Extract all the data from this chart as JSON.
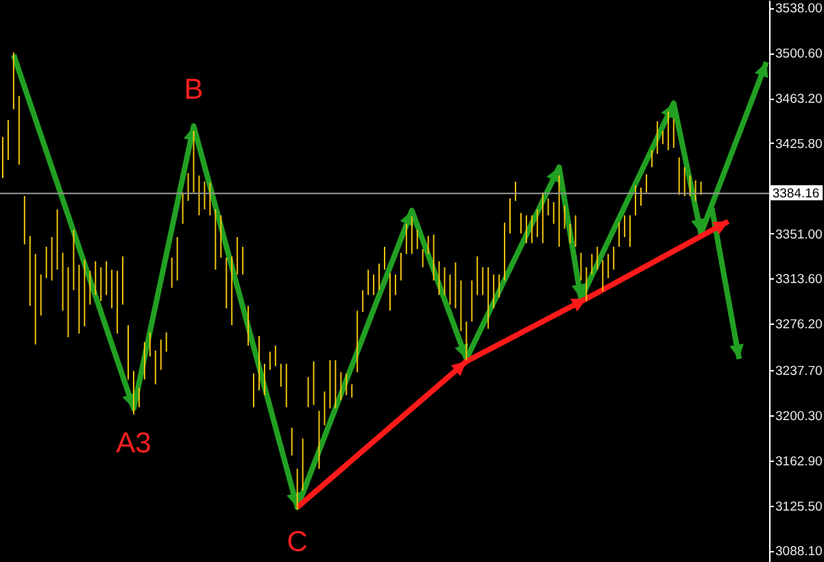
{
  "chart_data": {
    "type": "bar",
    "categories": [
      null,
      null,
      null,
      null,
      null,
      null,
      null,
      null,
      null,
      null,
      null,
      null,
      null,
      null,
      null,
      null,
      null,
      null,
      null,
      null,
      null,
      null,
      null,
      null,
      null,
      null,
      null,
      null,
      null,
      null,
      null,
      null,
      null,
      null,
      null,
      null,
      null,
      null,
      null,
      null,
      null,
      null,
      null,
      null,
      null,
      null,
      null,
      null,
      null,
      null,
      null,
      null,
      null,
      null,
      null,
      null,
      null,
      null,
      null,
      null,
      null,
      null,
      null,
      null,
      null,
      null,
      null,
      null,
      null,
      null,
      null,
      null,
      null,
      null,
      null,
      null,
      null,
      null,
      null,
      null,
      null,
      null,
      null,
      null,
      null,
      null,
      null,
      null,
      null,
      null,
      null,
      null,
      null,
      null,
      null,
      null,
      null,
      null,
      null,
      null,
      null,
      null,
      null,
      null,
      null,
      null,
      null,
      null,
      null,
      null,
      null,
      null,
      null,
      null,
      null,
      null,
      null,
      null,
      null,
      null,
      null,
      null,
      null,
      null,
      null,
      null,
      null,
      null,
      null,
      null,
      null,
      null,
      null,
      null,
      null,
      null,
      null,
      null,
      null,
      null,
      null
    ],
    "series": [
      {
        "color": "#f2c40f",
        "base": [
          3397,
          3412,
          3454,
          3408,
          3342,
          3291,
          3259,
          3283,
          3314,
          3312,
          3321,
          3287,
          3265,
          3304,
          3268,
          3274,
          3292,
          3300,
          3295,
          3300,
          3289,
          3268,
          3292,
          3230,
          3201,
          3207,
          3230,
          3249,
          3226,
          3238,
          3253,
          3306,
          3312,
          3359,
          3378,
          3385,
          3366,
          3371,
          3366,
          3321,
          3331,
          3289,
          3275,
          3317,
          3317,
          3258,
          3207,
          3221,
          3217,
          3238,
          3241,
          3224,
          3207,
          3167,
          3122,
          3138,
          3207,
          3209,
          3156,
          3192,
          3206,
          3206,
          3213,
          3217,
          3215,
          3236,
          3286,
          3300,
          3300,
          3304,
          3321,
          3287,
          3300,
          3312,
          3334,
          3334,
          3338,
          3323,
          3334,
          3312,
          3300,
          3300,
          3292,
          3289,
          3270,
          3246,
          3278,
          3300,
          3300,
          3272,
          3289,
          3298,
          3312,
          3351,
          3378,
          3351,
          3343,
          3343,
          3348,
          3343,
          3366,
          3359,
          3340,
          3355,
          3343,
          3340,
          3312,
          3295,
          3317,
          3321,
          3303,
          3314,
          3321,
          3340,
          3348,
          3340,
          3366,
          3374,
          3385,
          3406,
          3417,
          3425,
          3420,
          3422,
          3383,
          3382,
          3382,
          3378,
          3383,
          null,
          null,
          null,
          null,
          null,
          null,
          null,
          null,
          null,
          null,
          null,
          null
        ],
        "values": [
          34,
          33,
          47,
          57,
          40,
          58,
          75,
          34,
          26,
          36,
          50,
          48,
          58,
          50,
          57,
          55,
          28,
          28,
          28,
          28,
          32,
          52,
          40,
          45,
          36,
          16,
          31,
          20,
          28,
          25,
          16,
          25,
          36,
          26,
          23,
          51,
          33,
          23,
          27,
          50,
          35,
          42,
          57,
          31,
          23,
          33,
          28,
          45,
          26,
          15,
          17,
          19,
          36,
          23,
          34,
          43,
          25,
          36,
          48,
          28,
          40,
          40,
          23,
          18,
          11,
          51,
          18,
          21,
          17,
          22,
          19,
          31,
          17,
          23,
          25,
          31,
          16,
          15,
          15,
          38,
          28,
          23,
          25,
          38,
          42,
          32,
          34,
          32,
          23,
          51,
          28,
          19,
          48,
          29,
          16,
          17,
          23,
          23,
          23,
          42,
          14,
          18,
          59,
          19,
          16,
          26,
          23,
          28,
          17,
          19,
          26,
          20,
          19,
          20,
          18,
          26,
          25,
          15,
          15,
          14,
          27,
          11,
          32,
          24,
          31,
          24,
          17,
          17,
          11,
          null,
          null,
          null,
          null,
          null,
          null,
          null,
          null,
          null,
          null,
          null,
          null
        ]
      },
      {
        "type": "line",
        "color": "#22a022",
        "values": [
          null,
          null,
          3499,
          null,
          null,
          null,
          null,
          null,
          null,
          null,
          null,
          null,
          null,
          null,
          null,
          null,
          null,
          null,
          null,
          null,
          null,
          null,
          null,
          null,
          3206,
          null,
          null,
          null,
          null,
          null,
          null,
          null,
          null,
          null,
          null,
          3440,
          null,
          null,
          null,
          null,
          null,
          null,
          null,
          null,
          null,
          null,
          null,
          null,
          null,
          null,
          null,
          null,
          null,
          null,
          3124,
          null,
          null,
          null,
          null,
          null,
          null,
          null,
          null,
          null,
          null,
          null,
          null,
          null,
          null,
          null,
          null,
          null,
          null,
          null,
          null,
          3370,
          null,
          null,
          null,
          null,
          null,
          null,
          null,
          null,
          null,
          3247,
          null,
          null,
          null,
          null,
          null,
          null,
          null,
          null,
          null,
          null,
          null,
          null,
          null,
          null,
          null,
          null,
          3406,
          null,
          null,
          null,
          3297,
          null,
          null,
          null,
          null,
          null,
          null,
          null,
          null,
          null,
          null,
          null,
          null,
          null,
          null,
          null,
          null,
          3459,
          null,
          null,
          null,
          null,
          3351,
          null,
          null,
          null,
          null,
          null,
          null,
          null,
          null,
          null,
          null,
          null,
          3493
        ]
      },
      {
        "type": "line",
        "color": "#22a022",
        "values": [
          null,
          null,
          null,
          null,
          null,
          null,
          null,
          null,
          null,
          null,
          null,
          null,
          null,
          null,
          null,
          null,
          null,
          null,
          null,
          null,
          null,
          null,
          null,
          null,
          null,
          null,
          null,
          null,
          null,
          null,
          null,
          null,
          null,
          null,
          null,
          null,
          null,
          null,
          null,
          null,
          null,
          null,
          null,
          null,
          null,
          null,
          null,
          null,
          null,
          null,
          null,
          null,
          null,
          null,
          null,
          null,
          null,
          null,
          null,
          null,
          null,
          null,
          null,
          null,
          null,
          null,
          null,
          null,
          null,
          null,
          null,
          null,
          null,
          null,
          null,
          null,
          null,
          null,
          null,
          null,
          null,
          null,
          null,
          null,
          null,
          null,
          null,
          null,
          null,
          null,
          null,
          null,
          null,
          null,
          null,
          null,
          null,
          null,
          null,
          null,
          null,
          null,
          null,
          null,
          null,
          null,
          null,
          null,
          null,
          null,
          null,
          null,
          null,
          null,
          null,
          null,
          null,
          null,
          null,
          null,
          null,
          null,
          null,
          null,
          null,
          null,
          null,
          null,
          null,
          null,
          3372,
          null,
          null,
          null,
          null,
          3247,
          null,
          null,
          null,
          null,
          null
        ]
      },
      {
        "type": "line",
        "color": "#ff1a1a",
        "values": [
          null,
          null,
          null,
          null,
          null,
          null,
          null,
          null,
          null,
          null,
          null,
          null,
          null,
          null,
          null,
          null,
          null,
          null,
          null,
          null,
          null,
          null,
          null,
          null,
          null,
          null,
          null,
          null,
          null,
          null,
          null,
          null,
          null,
          null,
          null,
          null,
          null,
          null,
          null,
          null,
          null,
          null,
          null,
          null,
          null,
          null,
          null,
          null,
          null,
          null,
          null,
          null,
          null,
          null,
          3124,
          null,
          null,
          null,
          null,
          null,
          null,
          null,
          null,
          null,
          null,
          null,
          null,
          null,
          null,
          null,
          null,
          null,
          null,
          null,
          null,
          null,
          null,
          null,
          null,
          null,
          null,
          null,
          null,
          null,
          null,
          3245,
          null,
          null,
          null,
          null,
          null,
          null,
          null,
          null,
          null,
          null,
          null,
          null,
          null,
          null,
          null,
          null,
          null,
          null,
          null,
          null,
          null,
          3297,
          null,
          null,
          null,
          null,
          null,
          null,
          null,
          null,
          null,
          null,
          null,
          null,
          null,
          null,
          null,
          null,
          null,
          null,
          null,
          null,
          null,
          null,
          null,
          null,
          null,
          3361,
          null,
          null,
          null,
          null,
          null,
          null,
          null
        ]
      }
    ],
    "ylim": [
      3078.7,
      3544.5
    ],
    "yticks": [
      {
        "value": 3088.1,
        "label": "3088.10"
      },
      {
        "value": 3125.5,
        "label": "3125.50"
      },
      {
        "value": 3162.9,
        "label": "3162.90"
      },
      {
        "value": 3200.3,
        "label": "3200.30"
      },
      {
        "value": 3237.7,
        "label": "3237.70"
      },
      {
        "value": 3276.2,
        "label": "3276.20"
      },
      {
        "value": 3313.6,
        "label": "3313.60"
      },
      {
        "value": 3351,
        "label": "3351.00"
      },
      {
        "value": 3388.4,
        "label": null
      },
      {
        "value": 3425.8,
        "label": "3425.80"
      },
      {
        "value": 3463.2,
        "label": "3463.20"
      },
      {
        "value": 3500.6,
        "label": "3500.60"
      },
      {
        "value": 3538,
        "label": "3538.00"
      }
    ],
    "tick_labels": "y",
    "line_style": "solid",
    "ref_lines": [
      {
        "axis": "y",
        "value": 3384.16,
        "label": "3384.16",
        "color": "#9a9a9a"
      }
    ],
    "annotations": [
      {
        "text": "A3",
        "y": 3206
      },
      {
        "text": "B",
        "y": 3440
      },
      {
        "text": "C",
        "y": 3124
      }
    ]
  }
}
